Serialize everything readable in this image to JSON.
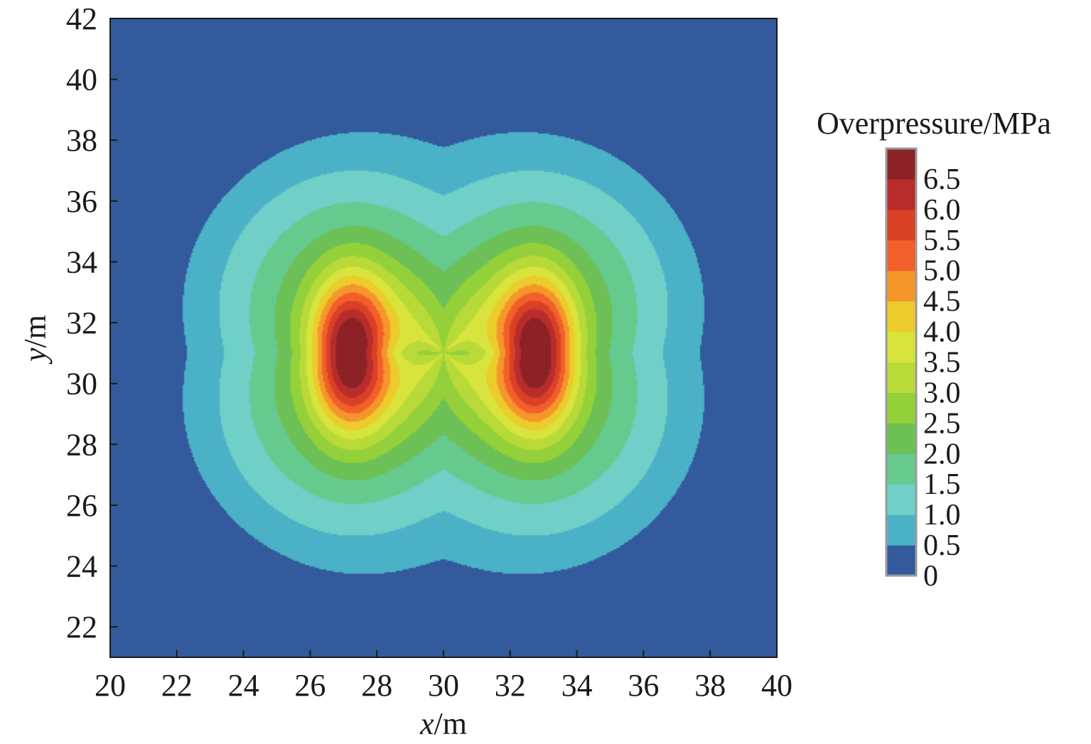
{
  "chart_data": {
    "type": "heatmap",
    "subtype": "filled-contour",
    "xlabel_var": "x",
    "xlabel_unit": "/m",
    "ylabel_var": "y",
    "ylabel_unit": "/m",
    "xlim": [
      20,
      40
    ],
    "ylim": [
      21,
      42
    ],
    "xticks": [
      20,
      22,
      24,
      26,
      28,
      30,
      32,
      34,
      36,
      38,
      40
    ],
    "yticks": [
      22,
      24,
      26,
      28,
      30,
      32,
      34,
      36,
      38,
      40,
      42
    ],
    "colorbar": {
      "title": "Overpressure/MPa",
      "levels": [
        0,
        0.5,
        1.0,
        1.5,
        2.0,
        2.5,
        3.0,
        3.5,
        4.0,
        4.5,
        5.0,
        5.5,
        6.0,
        6.5,
        7.0
      ],
      "tick_labels": [
        "0",
        "0.5",
        "1.0",
        "1.5",
        "2.0",
        "2.5",
        "3.0",
        "3.5",
        "4.0",
        "4.5",
        "5.0",
        "5.5",
        "6.0",
        "6.5"
      ],
      "colors": [
        "#325a9c",
        "#4bb1c6",
        "#70cfc6",
        "#66c98e",
        "#6cc055",
        "#94d03a",
        "#b8da38",
        "#d8e43c",
        "#eccb2c",
        "#f5962a",
        "#f35f2a",
        "#d84125",
        "#b92c2c",
        "#8c2226"
      ]
    },
    "sources": [
      {
        "x": 27.2,
        "y": 31.0,
        "peak_overpressure": 6.9
      },
      {
        "x": 32.8,
        "y": 31.0,
        "peak_overpressure": 6.9
      }
    ],
    "grid_extent": {
      "x": [
        20,
        40
      ],
      "y": [
        21,
        42
      ]
    }
  }
}
